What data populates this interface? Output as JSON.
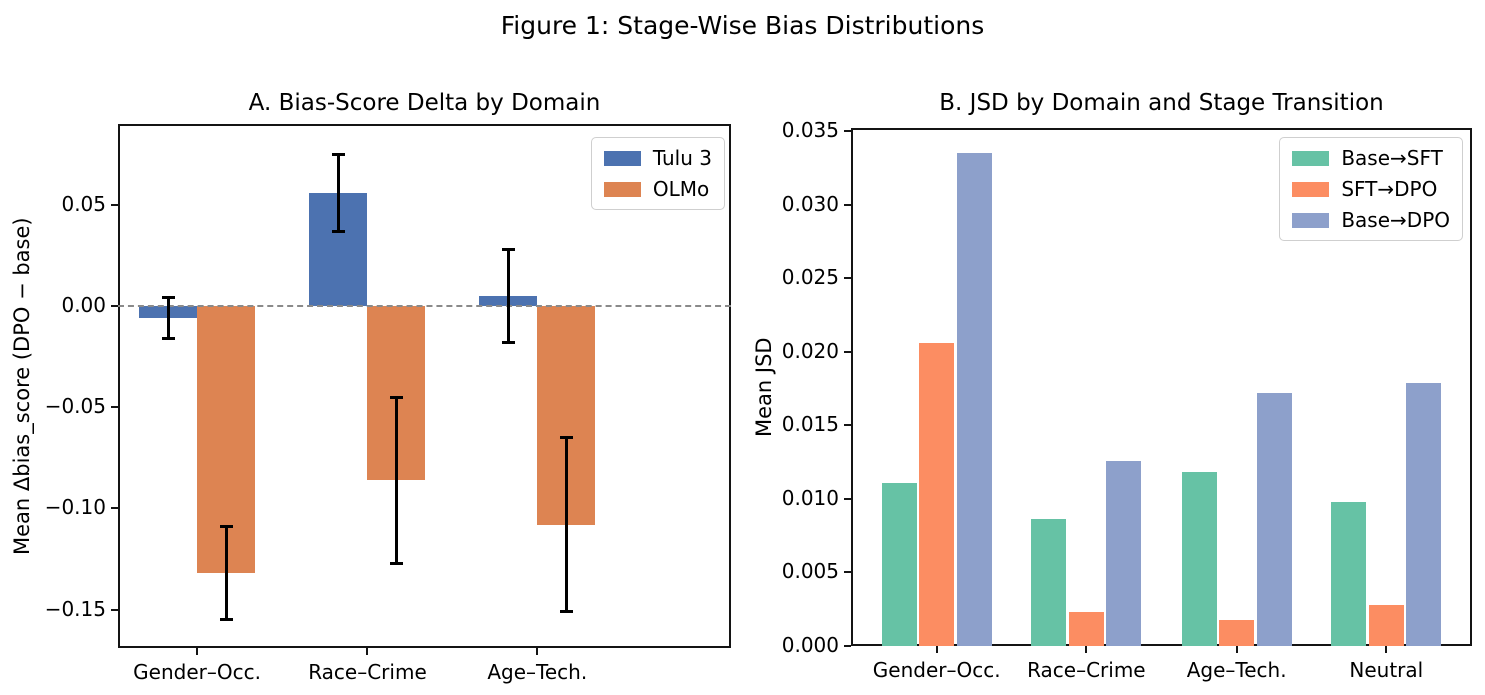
{
  "figure": {
    "suptitle": "Figure 1: Stage-Wise Bias Distributions"
  },
  "colors": {
    "tulu_blue": "#4c72b0",
    "olmo_orange": "#dd8452",
    "base_sft_green": "#66c2a5",
    "sft_dpo_salmon": "#fc8d62",
    "base_dpo_periwinkle": "#8da0cb",
    "spine": "#141414",
    "zero_line_gray": "#8a8a8a"
  },
  "chart_data": [
    {
      "id": "A",
      "type": "bar",
      "title": "A. Bias-Score Delta by Domain",
      "ylabel": "Mean Δbias_score (DPO − base)",
      "xlabel": "",
      "categories": [
        "Gender–Occ.",
        "Race–Crime",
        "Age–Tech."
      ],
      "series": [
        {
          "name": "Tulu 3",
          "color": "#4c72b0",
          "values": [
            -0.006,
            0.056,
            0.005
          ],
          "errors": [
            0.01,
            0.019,
            0.023
          ]
        },
        {
          "name": "OLMo",
          "color": "#dd8452",
          "values": [
            -0.132,
            -0.086,
            -0.108
          ],
          "errors": [
            0.023,
            0.041,
            0.043
          ]
        }
      ],
      "ylim": [
        -0.169,
        0.09
      ],
      "yticks": [
        0.05,
        0.0,
        -0.05,
        -0.1,
        -0.15
      ],
      "ytick_decimals": 2,
      "zero_line": true,
      "grid": false,
      "legend_position": "top-right",
      "error_bars": true
    },
    {
      "id": "B",
      "type": "bar",
      "title": "B. JSD by Domain and Stage Transition",
      "ylabel": "Mean JSD",
      "xlabel": "",
      "categories": [
        "Gender–Occ.",
        "Race–Crime",
        "Age–Tech.",
        "Neutral"
      ],
      "series": [
        {
          "name": "Base→SFT",
          "color": "#66c2a5",
          "values": [
            0.0111,
            0.0086,
            0.0118,
            0.0098
          ]
        },
        {
          "name": "SFT→DPO",
          "color": "#fc8d62",
          "values": [
            0.0206,
            0.0023,
            0.0018,
            0.0028
          ]
        },
        {
          "name": "Base→DPO",
          "color": "#8da0cb",
          "values": [
            0.0335,
            0.0126,
            0.0172,
            0.0179
          ]
        }
      ],
      "ylim": [
        0,
        0.0352
      ],
      "yticks": [
        0.035,
        0.03,
        0.025,
        0.02,
        0.015,
        0.01,
        0.005,
        0.0
      ],
      "ytick_decimals": 3,
      "zero_line": false,
      "grid": false,
      "legend_position": "top-right",
      "error_bars": false
    }
  ]
}
